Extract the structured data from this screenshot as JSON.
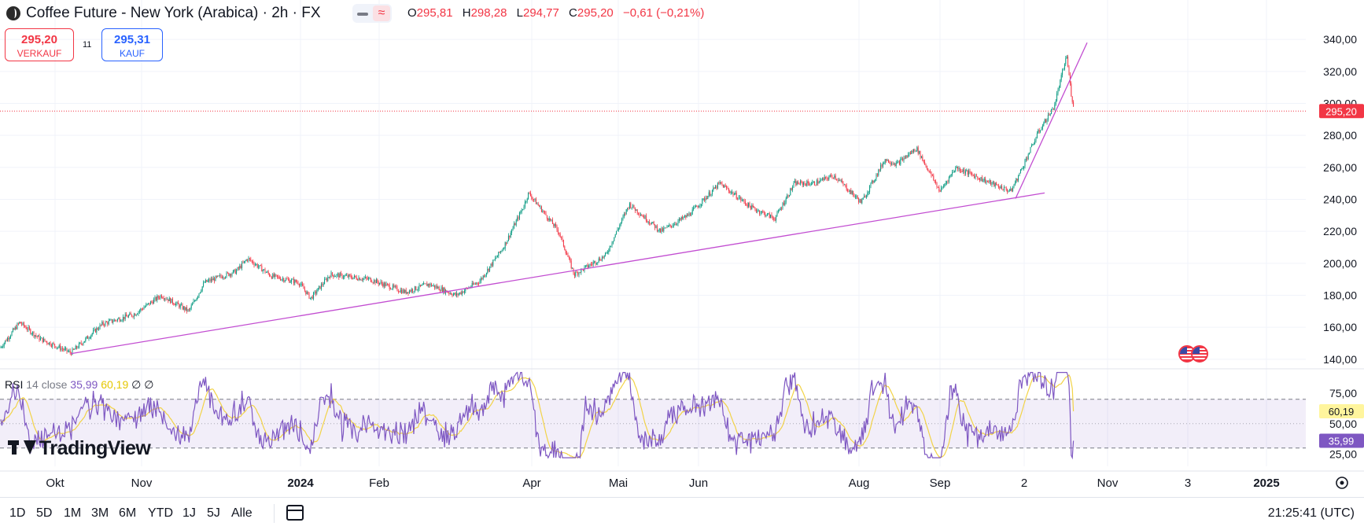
{
  "header": {
    "title": "Coffee Future - New York (Arabica) · 2h · FX",
    "ohlc": {
      "o_key": "O",
      "o": "295,81",
      "h_key": "H",
      "h": "298,28",
      "l_key": "L",
      "l": "294,77",
      "c_key": "C",
      "c": "295,20",
      "change": "−0,61 (−0,21%)"
    },
    "sell": {
      "price": "295,20",
      "label": "VERKAUF"
    },
    "buy": {
      "price": "295,31",
      "label": "KAUF"
    },
    "spread": "11",
    "indicator_icon": "wave-icon",
    "bars_icon": "bars-icon"
  },
  "rsi": {
    "name": "RSI",
    "params": "14 close",
    "value": "35,99",
    "ma_value": "60,19",
    "na1": "∅",
    "na2": "∅"
  },
  "logo": "TradingView",
  "range_buttons": [
    "1D",
    "5D",
    "1M",
    "3M",
    "6M",
    "YTD",
    "1J",
    "5J",
    "Alle"
  ],
  "clock": "21:25:41 (UTC)",
  "colors": {
    "up": "#089981",
    "down": "#f23645",
    "trendline": "#c24dd1",
    "rsi": "#7e57c2",
    "rsi_ma": "#f2d347",
    "last_price": "#f23645",
    "rsi_last": "#7e57c2",
    "rsi_ma_last": "#fff59d"
  },
  "chart_data": {
    "type": "candlestick",
    "price_axis": {
      "ylim": [
        135,
        345
      ],
      "ticks": [
        140,
        160,
        180,
        200,
        220,
        240,
        260,
        280,
        300,
        320,
        340
      ],
      "tick_labels": [
        "140,00",
        "160,00",
        "180,00",
        "200,00",
        "220,00",
        "240,00",
        "260,00",
        "280,00",
        "300,00",
        "320,00",
        "340,00"
      ],
      "last_price": 295.2,
      "last_price_label": "295,20"
    },
    "time_axis": {
      "labels": [
        "Okt",
        "Nov",
        "2024",
        "Feb",
        "Apr",
        "Mai",
        "Jun",
        "Aug",
        "Sep",
        "2",
        "Nov",
        "3",
        "2025"
      ]
    },
    "price_path": [
      [
        0,
        147
      ],
      [
        25,
        163
      ],
      [
        50,
        153
      ],
      [
        90,
        144
      ],
      [
        130,
        162
      ],
      [
        170,
        168
      ],
      [
        205,
        180
      ],
      [
        240,
        170
      ],
      [
        260,
        188
      ],
      [
        300,
        195
      ],
      [
        315,
        203
      ],
      [
        345,
        192
      ],
      [
        380,
        188
      ],
      [
        395,
        178
      ],
      [
        420,
        193
      ],
      [
        470,
        190
      ],
      [
        515,
        182
      ],
      [
        545,
        187
      ],
      [
        580,
        180
      ],
      [
        610,
        189
      ],
      [
        640,
        210
      ],
      [
        665,
        235
      ],
      [
        672,
        244
      ],
      [
        710,
        220
      ],
      [
        730,
        193
      ],
      [
        770,
        205
      ],
      [
        800,
        237
      ],
      [
        840,
        220
      ],
      [
        875,
        230
      ],
      [
        915,
        250
      ],
      [
        955,
        235
      ],
      [
        985,
        228
      ],
      [
        1010,
        250
      ],
      [
        1035,
        250
      ],
      [
        1060,
        255
      ],
      [
        1095,
        238
      ],
      [
        1125,
        265
      ],
      [
        1140,
        262
      ],
      [
        1165,
        272
      ],
      [
        1195,
        245
      ],
      [
        1215,
        260
      ],
      [
        1260,
        250
      ],
      [
        1285,
        245
      ],
      [
        1295,
        255
      ],
      [
        1320,
        282
      ],
      [
        1340,
        298
      ],
      [
        1356,
        330
      ],
      [
        1362,
        305
      ],
      [
        1366,
        296
      ]
    ],
    "trendlines": [
      {
        "from": [
          90,
          143.5
        ],
        "to": [
          1328,
          244
        ]
      },
      {
        "from": [
          1291,
          240.5
        ],
        "to": [
          1382,
          338
        ]
      }
    ],
    "rsi_axis": {
      "ylim": [
        15,
        95
      ],
      "ticks": [
        25,
        50,
        75
      ],
      "tick_labels": [
        "25,00",
        "50,00",
        "75,00"
      ],
      "upper_band": 70,
      "middle": 50,
      "lower_band": 30,
      "last_rsi": 35.99,
      "last_rsi_label": "35,99",
      "last_ma": 60.19,
      "last_ma_label": "60,19"
    }
  }
}
